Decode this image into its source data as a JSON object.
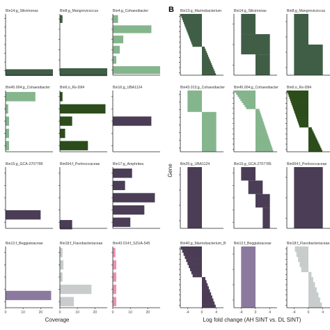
{
  "figure": {
    "panel_label_b": "B",
    "left_xlabel": "Coverage",
    "right_xlabel": "Log fold change (AH SINT vs. DL SINT)",
    "right_ylabel": "Gene"
  },
  "colors": {
    "darkgreen": "#3f5e45",
    "forest": "#2c4d1b",
    "lightgreen": "#85b58d",
    "purple": "#4a3d55",
    "lavender": "#8c7a9e",
    "grey": "#c8cccc",
    "pink": "#f28fb3",
    "axis": "#222222"
  },
  "chart_data": [
    {
      "panel": "A",
      "type": "bar",
      "orientation": "horizontal",
      "xlabel": "Coverage",
      "xlim": [
        0,
        27
      ],
      "xticks": [
        0,
        10,
        20
      ],
      "facets": [
        {
          "title": "Bin14;g_Silicimonas",
          "color": "darkgreen",
          "n": 7,
          "values": [
            {
              "slot": 6.2,
              "value": 27
            }
          ],
          "show_xticks": false
        },
        {
          "title": "Bin8;g_Mangrovicoccus",
          "color": "darkgreen",
          "n": 6,
          "values": [
            {
              "slot": 0,
              "value": 1.5
            },
            {
              "slot": 5.2,
              "value": 27
            }
          ],
          "show_xticks": false
        },
        {
          "title": "Bin4;g_Cohaesibacter",
          "color": "lightgreen",
          "n": 6,
          "values": [
            {
              "slot": 0,
              "value": 3
            },
            {
              "slot": 1,
              "value": 22
            },
            {
              "slot": 2,
              "value": 6
            },
            {
              "slot": 3,
              "value": 4
            },
            {
              "slot": 4,
              "value": 2
            },
            {
              "slot": 5,
              "value": 27
            }
          ],
          "show_xticks": false
        },
        {
          "title": "Bin45.004;g_Cohaesibacter",
          "color": "lightgreen",
          "n": 5,
          "values": [
            {
              "slot": 0,
              "value": 17
            },
            {
              "slot": 1,
              "value": 1.5
            },
            {
              "slot": 2,
              "value": 2
            },
            {
              "slot": 3,
              "value": 2
            },
            {
              "slot": 4,
              "value": 2
            }
          ],
          "show_xticks": false
        },
        {
          "title": "Bin6;o_Rs-D84",
          "color": "forest",
          "n": 5,
          "values": [
            {
              "slot": 0,
              "value": 1.5
            },
            {
              "slot": 1,
              "value": 26
            },
            {
              "slot": 2,
              "value": 7
            },
            {
              "slot": 3,
              "value": 3
            },
            {
              "slot": 4,
              "value": 16
            }
          ],
          "show_xticks": false
        },
        {
          "title": "Bin16;g_UBA1124",
          "color": "purple",
          "n": 5,
          "values": [
            {
              "slot": 2,
              "value": 22
            }
          ],
          "show_xticks": false
        },
        {
          "title": "Bin15;g_GCA-2707785",
          "color": "purple",
          "n": 5,
          "values": [
            {
              "slot": 3.4,
              "value": 20
            }
          ],
          "show_xticks": false
        },
        {
          "title": "Bin004;f_Porticoccaceae",
          "color": "purple",
          "n": 5,
          "values": [
            {
              "slot": 4.2,
              "value": 7
            }
          ],
          "show_xticks": false
        },
        {
          "title": "Bin17;g_Amphritea",
          "color": "purple",
          "n": 5,
          "values": [
            {
              "slot": 0,
              "value": 11
            },
            {
              "slot": 1,
              "value": 7
            },
            {
              "slot": 2,
              "value": 24
            },
            {
              "slot": 3,
              "value": 18
            },
            {
              "slot": 4,
              "value": 10
            }
          ],
          "show_xticks": false
        },
        {
          "title": "Bin12;f_Beggiatoaceae",
          "color": "lavender",
          "n": 5,
          "values": [
            {
              "slot": 3.5,
              "value": 26
            }
          ],
          "show_xticks": true
        },
        {
          "title": "Bin18;f_Flavobacteriaceae",
          "color": "grey",
          "n": 5,
          "values": [
            {
              "slot": 0,
              "value": 1.5
            },
            {
              "slot": 1,
              "value": 2
            },
            {
              "slot": 2,
              "value": 1.5
            },
            {
              "slot": 3,
              "value": 18
            },
            {
              "slot": 4,
              "value": 8
            }
          ],
          "show_xticks": true
        },
        {
          "title": "Bin43.014;f_SZUA-545",
          "color": "pink",
          "n": 5,
          "values": [
            {
              "slot": 0,
              "value": 1.5
            },
            {
              "slot": 1,
              "value": 2
            },
            {
              "slot": 2,
              "value": 2
            },
            {
              "slot": 3,
              "value": 2
            },
            {
              "slot": 4,
              "value": 2
            }
          ],
          "show_xticks": true
        }
      ]
    },
    {
      "panel": "B",
      "type": "bar",
      "orientation": "horizontal",
      "xlabel": "Log fold change (AH SINT vs. DL SINT)",
      "ylabel": "Gene",
      "xlim": [
        -6,
        6
      ],
      "xticks": [
        -4,
        0,
        4
      ],
      "facets": [
        {
          "title": "Bin13;g_Marinobacterium",
          "color": "darkgreen",
          "n": 30,
          "profile": [
            [
              0,
              0.55,
              -6,
              0
            ],
            [
              0.55,
              1.0,
              0,
              4
            ]
          ],
          "show_xticks": false
        },
        {
          "title": "Bin14;g_Silicimonas",
          "color": "darkgreen",
          "n": 3,
          "segments": [
            {
              "y0": 0.0,
              "y1": 0.33,
              "x0": -4,
              "x1": 0
            },
            {
              "y0": 0.33,
              "y1": 0.66,
              "x0": -4,
              "x1": 4
            },
            {
              "y0": 0.66,
              "y1": 1.0,
              "x0": 0,
              "x1": 4
            }
          ],
          "show_xticks": false
        },
        {
          "title": "Bin8;g_Mangrovicoccus",
          "color": "darkgreen",
          "n": 4,
          "segments": [
            {
              "y0": 0.0,
              "y1": 0.5,
              "x0": -4,
              "x1": 0
            },
            {
              "y0": 0.5,
              "y1": 1.0,
              "x0": -4,
              "x1": 4
            }
          ],
          "show_xticks": false
        },
        {
          "title": "Bin43.013;g_Cohaesibacter",
          "color": "lightgreen",
          "n": 8,
          "segments": [
            {
              "y0": 0.0,
              "y1": 0.35,
              "x0": -4,
              "x1": 0
            },
            {
              "y0": 0.35,
              "y1": 1.0,
              "x0": 0,
              "x1": 4
            }
          ],
          "show_xticks": false
        },
        {
          "title": "Bin45.004;g_Cohaesibacter",
          "color": "lightgreen",
          "n": 30,
          "profile": [
            [
              0,
              0.3,
              -6,
              0
            ],
            [
              0.3,
              1.0,
              0,
              5
            ]
          ],
          "show_xticks": false
        },
        {
          "title": "Bin6;o_Rs-D84",
          "color": "forest",
          "n": 30,
          "profile": [
            [
              0,
              0.6,
              -6,
              0
            ],
            [
              0.6,
              1.0,
              0,
              4
            ]
          ],
          "show_xticks": false
        },
        {
          "title": "Bin25;g_UBA1124",
          "color": "purple",
          "n": 4,
          "segments": [
            {
              "y0": 0.0,
              "y1": 1.0,
              "x0": -4,
              "x1": 0
            }
          ],
          "show_xticks": false
        },
        {
          "title": "Bin15;g_GCA-2707785",
          "color": "purple",
          "n": 5,
          "segments": [
            {
              "y0": 0.0,
              "y1": 0.22,
              "x0": -4,
              "x1": 0
            },
            {
              "y0": 0.22,
              "y1": 0.44,
              "x0": -2,
              "x1": 2
            },
            {
              "y0": 0.44,
              "y1": 0.66,
              "x0": 0,
              "x1": 4
            },
            {
              "y0": 0.66,
              "y1": 1.0,
              "x0": 2,
              "x1": 4
            }
          ],
          "show_xticks": false
        },
        {
          "title": "Bin004;f_Porticoccaceae",
          "color": "purple",
          "n": 3,
          "segments": [
            {
              "y0": 0.0,
              "y1": 1.0,
              "x0": -4,
              "x1": 4
            }
          ],
          "show_xticks": false
        },
        {
          "title": "Bin40;g_Marinobacterium_B",
          "color": "purple",
          "n": 20,
          "profile": [
            [
              0,
              0.5,
              -6,
              0
            ],
            [
              0.5,
              1.0,
              0,
              4
            ]
          ],
          "show_xticks": true
        },
        {
          "title": "Bin12;f_Beggiatoaceae",
          "color": "lavender",
          "n": 4,
          "segments": [
            {
              "y0": 0.0,
              "y1": 1.0,
              "x0": -4,
              "x1": 0
            }
          ],
          "show_xticks": true
        },
        {
          "title": "Bin18;f_Flavobacteriaceae",
          "color": "grey",
          "n": 12,
          "profile": [
            [
              0,
              0.45,
              -4,
              0
            ],
            [
              0.45,
              1.0,
              0,
              4
            ]
          ],
          "show_xticks": true
        }
      ]
    }
  ]
}
